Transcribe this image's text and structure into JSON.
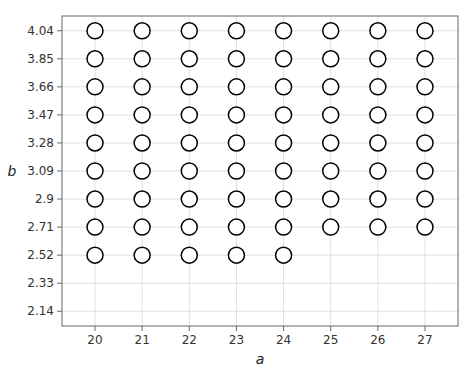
{
  "chart_data": {
    "type": "scatter",
    "xlabel": "a",
    "ylabel": "b",
    "x": [
      20,
      21,
      22,
      23,
      24,
      20,
      21,
      22,
      23,
      24,
      25,
      26,
      27,
      20,
      21,
      22,
      23,
      24,
      25,
      26,
      27,
      20,
      21,
      22,
      23,
      24,
      25,
      26,
      27,
      20,
      21,
      22,
      23,
      24,
      25,
      26,
      27,
      20,
      21,
      22,
      23,
      24,
      25,
      26,
      27,
      20,
      21,
      22,
      23,
      24,
      25,
      26,
      27,
      20,
      21,
      22,
      23,
      24,
      25,
      26,
      27,
      20,
      21,
      22,
      23,
      24,
      25,
      26,
      27
    ],
    "values": [
      2.52,
      2.52,
      2.52,
      2.52,
      2.52,
      2.71,
      2.71,
      2.71,
      2.71,
      2.71,
      2.71,
      2.71,
      2.71,
      2.9,
      2.9,
      2.9,
      2.9,
      2.9,
      2.9,
      2.9,
      2.9,
      3.09,
      3.09,
      3.09,
      3.09,
      3.09,
      3.09,
      3.09,
      3.09,
      3.28,
      3.28,
      3.28,
      3.28,
      3.28,
      3.28,
      3.28,
      3.28,
      3.47,
      3.47,
      3.47,
      3.47,
      3.47,
      3.47,
      3.47,
      3.47,
      3.66,
      3.66,
      3.66,
      3.66,
      3.66,
      3.66,
      3.66,
      3.66,
      3.85,
      3.85,
      3.85,
      3.85,
      3.85,
      3.85,
      3.85,
      3.85,
      4.04,
      4.04,
      4.04,
      4.04,
      4.04,
      4.04,
      4.04,
      4.04
    ],
    "xlim": [
      19.3,
      27.7
    ],
    "ylim": [
      2.04,
      4.14
    ],
    "xticks": [
      20,
      21,
      22,
      23,
      24,
      25,
      26,
      27
    ],
    "yticks": [
      2.14,
      2.33,
      2.52,
      2.71,
      2.9,
      3.09,
      3.28,
      3.47,
      3.66,
      3.85,
      4.04
    ],
    "color": "black",
    "marker": "circle",
    "grid": true
  }
}
